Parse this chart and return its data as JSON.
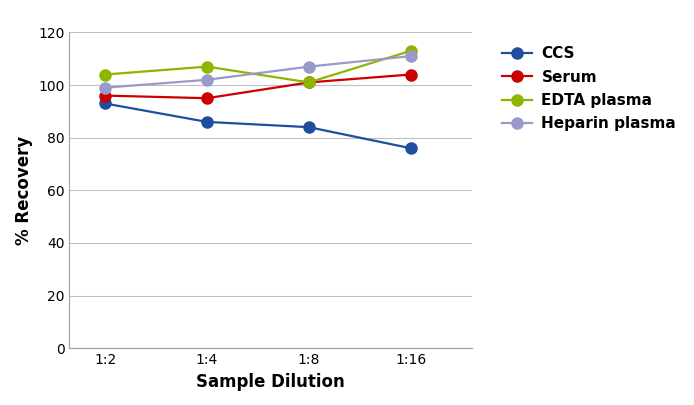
{
  "x_labels": [
    "1:2",
    "1:4",
    "1:8",
    "1:16"
  ],
  "x_positions": [
    0,
    1,
    2,
    3
  ],
  "series": [
    {
      "name": "CCS",
      "color": "#1f4e9c",
      "values": [
        93,
        86,
        84,
        76
      ],
      "marker": "o"
    },
    {
      "name": "Serum",
      "color": "#cc0000",
      "values": [
        96,
        95,
        101,
        104
      ],
      "marker": "o"
    },
    {
      "name": "EDTA plasma",
      "color": "#8db600",
      "values": [
        104,
        107,
        101,
        113
      ],
      "marker": "o"
    },
    {
      "name": "Heparin plasma",
      "color": "#9999cc",
      "values": [
        99,
        102,
        107,
        111
      ],
      "marker": "o"
    }
  ],
  "ylabel": "% Recovery",
  "xlabel": "Sample Dilution",
  "ylim": [
    0,
    120
  ],
  "yticks": [
    0,
    20,
    40,
    60,
    80,
    100,
    120
  ],
  "grid_color": "#c0c0c0",
  "bg_color": "#ffffff",
  "axis_label_fontsize": 12,
  "tick_fontsize": 10,
  "legend_fontsize": 11,
  "line_width": 1.6,
  "marker_size": 8
}
